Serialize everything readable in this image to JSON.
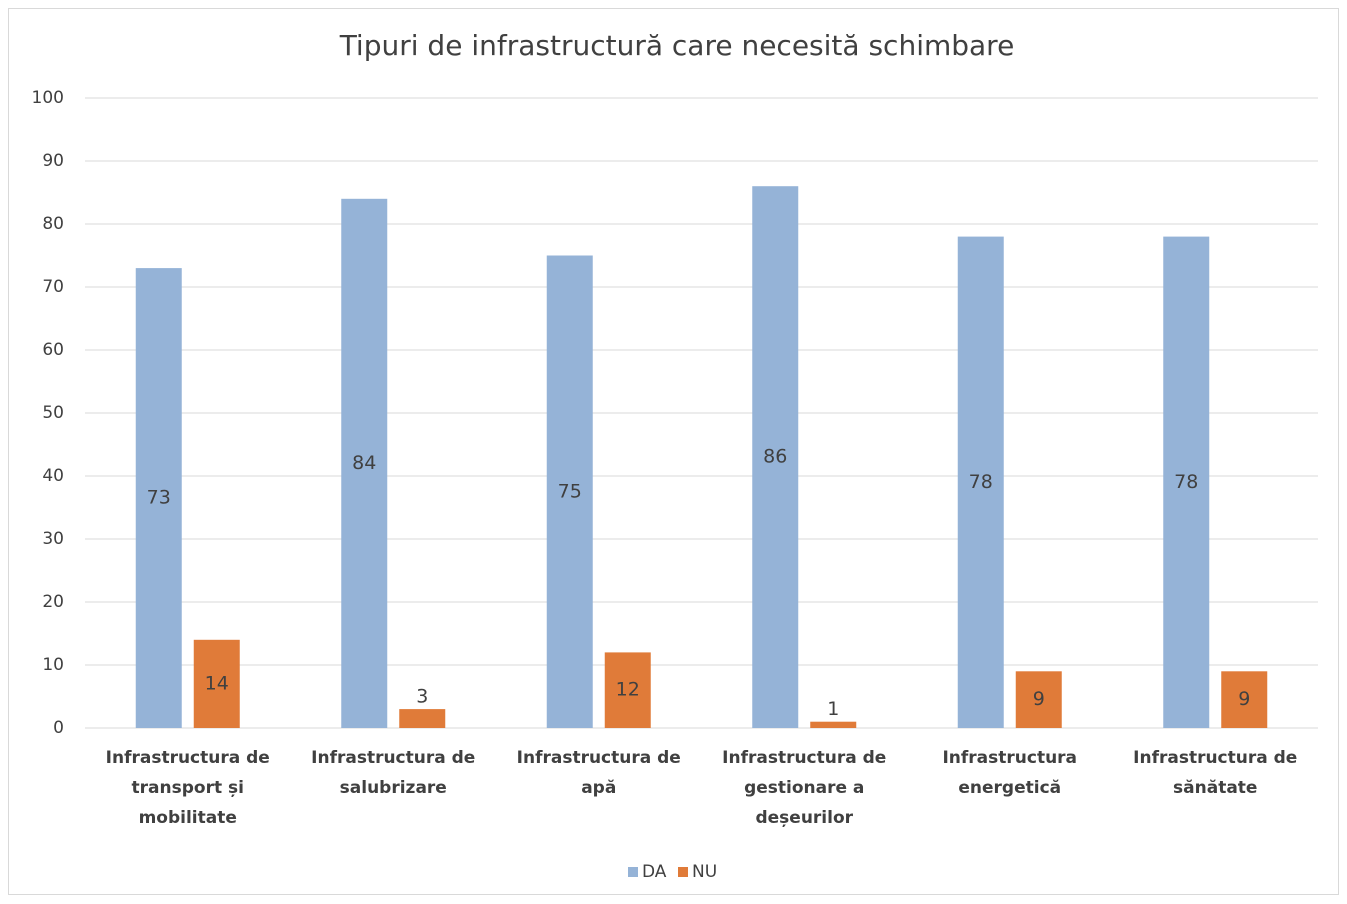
{
  "chart_data": {
    "type": "bar",
    "title": "Tipuri de infrastructură care necesită schimbare",
    "categories": [
      "Infrastructura de transport și mobilitate",
      "Infrastructura de salubrizare",
      "Infrastructura de apă",
      "Infrastructura de gestionare a deșeurilor",
      "Infrastructura energetică",
      "Infrastructura de sănătate"
    ],
    "series": [
      {
        "name": "DA",
        "color": "#95b3d7",
        "values": [
          73,
          84,
          75,
          86,
          78,
          78
        ]
      },
      {
        "name": "NU",
        "color": "#e07b39",
        "values": [
          14,
          3,
          12,
          1,
          9,
          9
        ]
      }
    ],
    "ylim": [
      0,
      100
    ],
    "yticks": [
      0,
      10,
      20,
      30,
      40,
      50,
      60,
      70,
      80,
      90,
      100
    ],
    "grid": true,
    "legend": "bottom"
  }
}
